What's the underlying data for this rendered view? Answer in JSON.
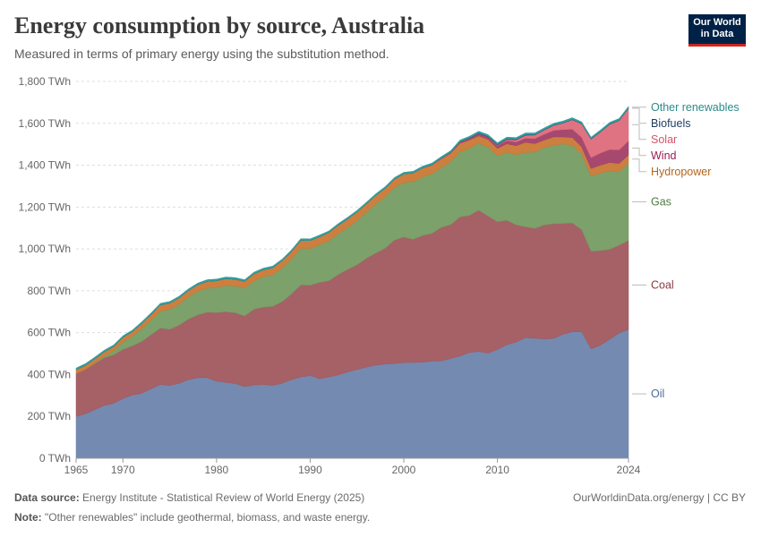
{
  "header": {
    "title": "Energy consumption by source, Australia",
    "subtitle": "Measured in terms of primary energy using the substitution method."
  },
  "logo": {
    "line1": "Our World",
    "line2": "in Data",
    "bg": "#002147",
    "accent": "#ce261e"
  },
  "footer": {
    "source_label": "Data source:",
    "source_text": "Energy Institute - Statistical Review of World Energy (2025)",
    "note_label": "Note:",
    "note_text": "\"Other renewables\" include geothermal, biomass, and waste energy.",
    "credit": "OurWorldinData.org/energy | CC BY"
  },
  "chart_data": {
    "type": "area",
    "stacked": true,
    "title": "Energy consumption by source, Australia",
    "xlabel": "",
    "ylabel": "",
    "unit": "TWh",
    "xlim": [
      1965,
      2024
    ],
    "ylim": [
      0,
      1800
    ],
    "x_ticks": [
      1965,
      1970,
      1980,
      1990,
      2000,
      2010,
      2024
    ],
    "y_ticks": [
      0,
      200,
      400,
      600,
      800,
      1000,
      1200,
      1400,
      1600,
      1800
    ],
    "y_tick_labels": [
      "0 TWh",
      "200 TWh",
      "400 TWh",
      "600 TWh",
      "800 TWh",
      "1,000 TWh",
      "1,200 TWh",
      "1,400 TWh",
      "1,600 TWh",
      "1,800 TWh"
    ],
    "grid": true,
    "legend_position": "right",
    "x": [
      1965,
      1966,
      1967,
      1968,
      1969,
      1970,
      1971,
      1972,
      1973,
      1974,
      1975,
      1976,
      1977,
      1978,
      1979,
      1980,
      1981,
      1982,
      1983,
      1984,
      1985,
      1986,
      1987,
      1988,
      1989,
      1990,
      1991,
      1992,
      1993,
      1994,
      1995,
      1996,
      1997,
      1998,
      1999,
      2000,
      2001,
      2002,
      2003,
      2004,
      2005,
      2006,
      2007,
      2008,
      2009,
      2010,
      2011,
      2012,
      2013,
      2014,
      2015,
      2016,
      2017,
      2018,
      2019,
      2020,
      2021,
      2022,
      2023,
      2024
    ],
    "series": [
      {
        "name": "Oil",
        "color": "#6d84ad",
        "values": [
          200,
          212,
          232,
          252,
          262,
          285,
          302,
          310,
          332,
          352,
          348,
          358,
          375,
          385,
          385,
          368,
          362,
          357,
          342,
          350,
          352,
          348,
          358,
          375,
          388,
          395,
          380,
          388,
          398,
          412,
          424,
          435,
          445,
          450,
          452,
          457,
          458,
          459,
          464,
          465,
          476,
          488,
          505,
          510,
          502,
          520,
          542,
          555,
          576,
          573,
          570,
          572,
          592,
          604,
          604,
          522,
          540,
          568,
          598,
          615
        ]
      },
      {
        "name": "Coal",
        "color": "#a0585e",
        "values": [
          205,
          212,
          220,
          228,
          232,
          235,
          235,
          248,
          258,
          270,
          268,
          278,
          290,
          300,
          313,
          328,
          338,
          338,
          338,
          362,
          370,
          378,
          390,
          410,
          440,
          432,
          460,
          460,
          480,
          490,
          500,
          520,
          535,
          553,
          590,
          600,
          588,
          605,
          610,
          638,
          640,
          665,
          655,
          675,
          655,
          610,
          595,
          560,
          530,
          525,
          545,
          548,
          530,
          520,
          488,
          467,
          452,
          430,
          420,
          425
        ]
      },
      {
        "name": "Gas",
        "color": "#759c62",
        "values": [
          0,
          0,
          3,
          8,
          18,
          35,
          45,
          60,
          70,
          80,
          95,
          100,
          106,
          113,
          115,
          120,
          125,
          128,
          132,
          135,
          145,
          150,
          160,
          165,
          175,
          175,
          180,
          190,
          195,
          200,
          210,
          220,
          235,
          245,
          250,
          260,
          275,
          280,
          285,
          285,
          300,
          310,
          320,
          320,
          330,
          315,
          325,
          335,
          355,
          365,
          370,
          375,
          380,
          370,
          360,
          360,
          370,
          375,
          350,
          370
        ]
      },
      {
        "name": "Hydropower",
        "color": "#c97835",
        "values": [
          18,
          20,
          20,
          20,
          21,
          22,
          22,
          25,
          26,
          30,
          30,
          30,
          30,
          31,
          32,
          32,
          33,
          32,
          33,
          34,
          33,
          34,
          35,
          37,
          38,
          38,
          38,
          40,
          40,
          41,
          42,
          40,
          40,
          41,
          41,
          41,
          41,
          42,
          41,
          42,
          41,
          42,
          40,
          35,
          36,
          35,
          40,
          43,
          48,
          40,
          35,
          40,
          33,
          38,
          35,
          35,
          38,
          40,
          40,
          38
        ]
      },
      {
        "name": "Wind",
        "color": "#a23f67",
        "values": [
          0,
          0,
          0,
          0,
          0,
          0,
          0,
          0,
          0,
          0,
          0,
          0,
          0,
          0,
          0,
          0,
          0,
          0,
          0,
          0,
          0,
          0,
          0,
          0,
          0,
          0,
          0,
          0,
          0,
          0,
          0,
          0,
          0,
          0,
          0,
          0,
          1,
          1,
          2,
          3,
          4,
          6,
          8,
          10,
          11,
          13,
          16,
          18,
          20,
          24,
          28,
          31,
          35,
          40,
          46,
          52,
          58,
          62,
          65,
          68
        ]
      },
      {
        "name": "Solar",
        "color": "#de6b7a",
        "values": [
          0,
          0,
          0,
          0,
          0,
          0,
          0,
          0,
          0,
          0,
          0,
          0,
          0,
          0,
          0,
          0,
          0,
          0,
          0,
          0,
          0,
          0,
          0,
          0,
          0,
          0,
          0,
          0,
          0,
          0,
          0,
          0,
          0,
          0,
          0,
          0,
          0,
          0,
          0,
          0,
          0,
          0,
          0,
          1,
          1,
          3,
          5,
          10,
          14,
          17,
          20,
          24,
          31,
          45,
          64,
          88,
          100,
          120,
          140,
          155
        ]
      },
      {
        "name": "Biofuels",
        "color": "#234872",
        "values": [
          0,
          0,
          0,
          0,
          0,
          0,
          0,
          0,
          0,
          0,
          0,
          0,
          0,
          0,
          0,
          0,
          0,
          0,
          0,
          0,
          0,
          0,
          0,
          0,
          0,
          0,
          0,
          0,
          0,
          0,
          0,
          0,
          0,
          0,
          0,
          0,
          0,
          0,
          0,
          0,
          0,
          1,
          2,
          3,
          3,
          3,
          3,
          3,
          3,
          2,
          2,
          2,
          2,
          2,
          2,
          2,
          2,
          2,
          2,
          2
        ]
      },
      {
        "name": "Other renewables",
        "color": "#2b9a99",
        "values": [
          8,
          8,
          8,
          8,
          8,
          8,
          8,
          8,
          8,
          8,
          8,
          8,
          8,
          8,
          8,
          8,
          8,
          8,
          8,
          8,
          8,
          8,
          8,
          8,
          8,
          8,
          8,
          8,
          8,
          8,
          8,
          8,
          8,
          8,
          8,
          8,
          8,
          8,
          8,
          8,
          8,
          8,
          8,
          8,
          8,
          8,
          8,
          8,
          8,
          8,
          8,
          8,
          8,
          8,
          8,
          8,
          8,
          8,
          8,
          8
        ]
      }
    ],
    "legend_order": [
      "Other renewables",
      "Biofuels",
      "Solar",
      "Wind",
      "Hydropower",
      "Gas",
      "Coal",
      "Oil"
    ]
  }
}
